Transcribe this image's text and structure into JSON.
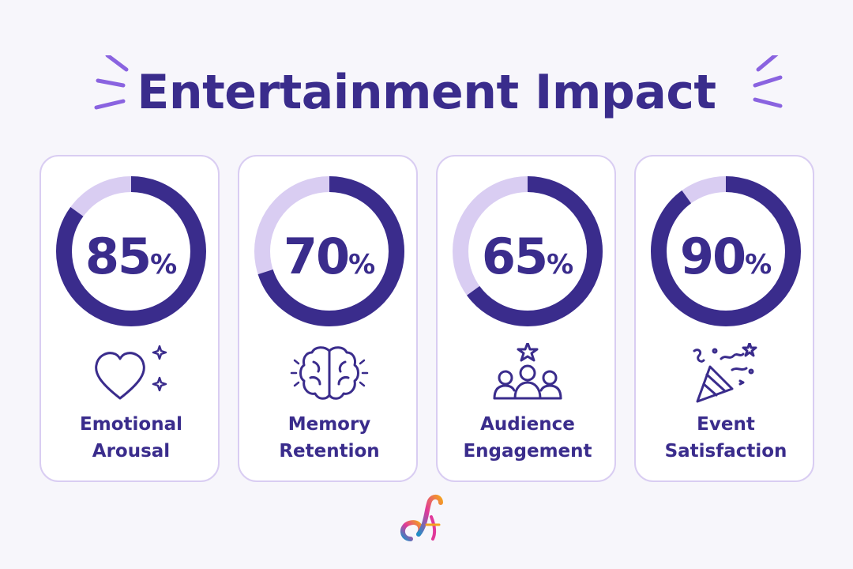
{
  "colors": {
    "primary": "#3a2c8c",
    "track": "#d9cdf2",
    "accent": "#8a63e0"
  },
  "chart_data": {
    "type": "donut",
    "title": "Entertainment Impact",
    "items": [
      {
        "label": "Emotional Arousal",
        "value": 85,
        "icon": "heart-icon"
      },
      {
        "label": "Memory Retention",
        "value": 70,
        "icon": "brain-icon"
      },
      {
        "label": "Audience Engagement",
        "value": 65,
        "icon": "audience-icon"
      },
      {
        "label": "Event Satisfaction",
        "value": 90,
        "icon": "party-popper-icon"
      }
    ],
    "max": 100
  }
}
